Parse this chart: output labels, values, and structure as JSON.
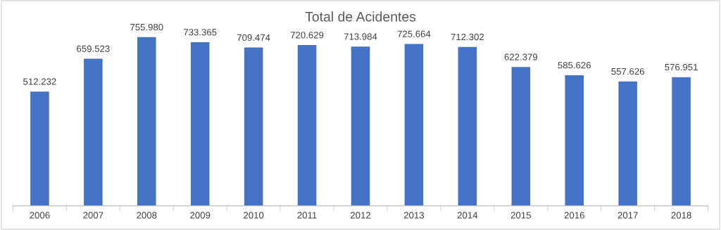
{
  "chart_data": {
    "type": "bar",
    "title": "Total de Acidentes",
    "categories": [
      "2006",
      "2007",
      "2008",
      "2009",
      "2010",
      "2011",
      "2012",
      "2013",
      "2014",
      "2015",
      "2016",
      "2017",
      "2018"
    ],
    "values": [
      512232,
      659523,
      755980,
      733365,
      709474,
      720629,
      713984,
      725664,
      712302,
      622379,
      585626,
      557626,
      576951
    ],
    "value_labels": [
      "512.232",
      "659.523",
      "755.980",
      "733.365",
      "709.474",
      "720.629",
      "713.984",
      "725.664",
      "712.302",
      "622.379",
      "585.626",
      "557.626",
      "576.951"
    ],
    "color": "#4472c4",
    "tick_labels": "x",
    "grid": false,
    "legend": false
  }
}
